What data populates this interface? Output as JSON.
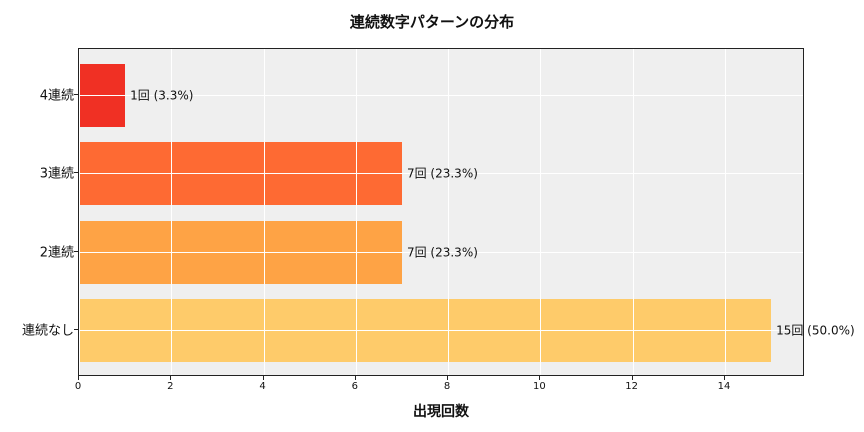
{
  "chart_data": {
    "type": "bar",
    "orientation": "horizontal",
    "title": "連続数字パターンの分布",
    "xlabel": "出現回数",
    "ylabel": "",
    "categories": [
      "4連続",
      "3連続",
      "2連続",
      "連続なし"
    ],
    "values": [
      1,
      7,
      7,
      15
    ],
    "percentages": [
      3.3,
      23.3,
      23.3,
      50.0
    ],
    "data_labels": [
      "1回 (3.3%)",
      "7回 (23.3%)",
      "7回 (23.3%)",
      "15回 (50.0%)"
    ],
    "colors": [
      "#f03024",
      "#fe6a33",
      "#fea345",
      "#fecb6a"
    ],
    "xlim": [
      0,
      15.75
    ],
    "xticks": [
      0,
      2,
      4,
      6,
      8,
      10,
      12,
      14
    ],
    "grid": true,
    "background": "#efefef"
  },
  "title": "連続数字パターンの分布",
  "xlabel": "出現回数",
  "xticks": [
    "0",
    "2",
    "4",
    "6",
    "8",
    "10",
    "12",
    "14"
  ],
  "bars": [
    {
      "label": "4連続",
      "value_label": "1回 (3.3%)"
    },
    {
      "label": "3連続",
      "value_label": "7回 (23.3%)"
    },
    {
      "label": "2連続",
      "value_label": "7回 (23.3%)"
    },
    {
      "label": "連続なし",
      "value_label": "15回 (50.0%)"
    }
  ]
}
